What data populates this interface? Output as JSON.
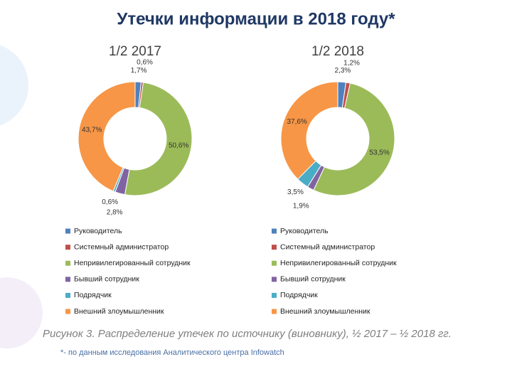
{
  "title": "Утечки информации в 2018 году*",
  "caption": "Рисунок 3. Распределение утечек по источнику (виновнику), ½ 2017 – ½ 2018 гг.",
  "footnote": "*- по данным исследования Аналитического центра Infowatch",
  "chart_data": [
    {
      "type": "pie",
      "donut": true,
      "title": "1/2 2017",
      "categories": [
        "Руководитель",
        "Системный администратор",
        "Непривилегированный сотрудник",
        "Бывший сотрудник",
        "Подрядчик",
        "Внешний злоумышленник"
      ],
      "values": [
        1.7,
        0.6,
        50.6,
        2.8,
        0.6,
        43.7
      ],
      "value_labels": [
        "1,7%",
        "0,6%",
        "50,6%",
        "2,8%",
        "0,6%",
        "43,7%"
      ],
      "colors": [
        "#4f81bd",
        "#c0504d",
        "#9bbb59",
        "#8064a2",
        "#4bacc6",
        "#f79646"
      ],
      "legend": "bottom"
    },
    {
      "type": "pie",
      "donut": true,
      "title": "1/2 2018",
      "categories": [
        "Руководитель",
        "Системный администратор",
        "Непривилегированный сотрудник",
        "Бывший сотрудник",
        "Подрядчик",
        "Внешний злоумышленник"
      ],
      "values": [
        2.3,
        1.2,
        53.5,
        1.9,
        3.5,
        37.6
      ],
      "value_labels": [
        "2,3%",
        "1,2%",
        "53,5%",
        "1,9%",
        "3,5%",
        "37,6%"
      ],
      "colors": [
        "#4f81bd",
        "#c0504d",
        "#9bbb59",
        "#8064a2",
        "#4bacc6",
        "#f79646"
      ],
      "legend": "bottom"
    }
  ]
}
